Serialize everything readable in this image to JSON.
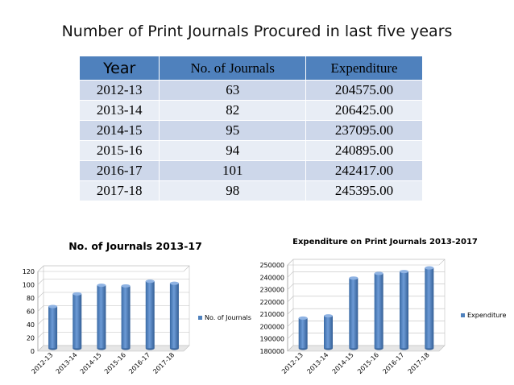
{
  "page_title": "Number of Print Journals Procured in last five years",
  "table": {
    "headers": [
      "Year",
      "No. of Journals",
      "Expenditure"
    ],
    "rows": [
      [
        "2012-13",
        "63",
        "204575.00"
      ],
      [
        "2013-14",
        "82",
        "206425.00"
      ],
      [
        "2014-15",
        "95",
        "237095.00"
      ],
      [
        "2015-16",
        "94",
        "240895.00"
      ],
      [
        "2016-17",
        "101",
        "242417.00"
      ],
      [
        "2017-18",
        "98",
        "245395.00"
      ]
    ]
  },
  "colors": {
    "header": "#4f81bd",
    "bar": "#4f81bd",
    "row_dark": "#cdd7ea",
    "row_light": "#e8edf5"
  },
  "chart_data": [
    {
      "type": "bar",
      "title": "No. of Journals 2013-17",
      "categories": [
        "2012-13",
        "2013-14",
        "2014-15",
        "2015-16",
        "2016-17",
        "2017-18"
      ],
      "series": [
        {
          "name": "No. of Journals",
          "values": [
            63,
            82,
            95,
            94,
            101,
            98
          ]
        }
      ],
      "ylim": [
        0,
        120
      ],
      "yticks": [
        "0",
        "20",
        "40",
        "60",
        "80",
        "100",
        "120"
      ],
      "legend": "right"
    },
    {
      "type": "bar",
      "title": "Expenditure on Print Journals 2013-2017",
      "categories": [
        "2012-13",
        "2013-14",
        "2014-15",
        "2015-16",
        "2016-17",
        "2017-18"
      ],
      "series": [
        {
          "name": "Expenditure",
          "values": [
            204575,
            206425,
            237095,
            240895,
            242417,
            245395
          ]
        }
      ],
      "ylim": [
        180000,
        250000
      ],
      "yticks": [
        "180000",
        "190000",
        "200000",
        "210000",
        "220000",
        "230000",
        "240000",
        "250000"
      ],
      "legend": "right"
    }
  ]
}
